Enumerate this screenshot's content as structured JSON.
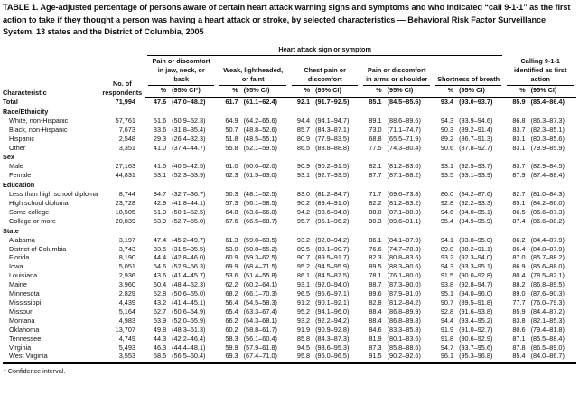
{
  "title": "TABLE 1. Age-adjusted percentage of persons aware of certain heart attack warning signs and symptoms and who indicated “call 9-1-1” as the first action to take if they thought a person was having a heart attack or stroke, by selected characteristics — Behavioral Risk Factor Surveillance System, 13 states and the District of Columbia, 2005",
  "spanner": "Heart attack sign or symptom",
  "characteristic_header": "Characteristic",
  "respondents_header": "No. of respondents",
  "groups": [
    {
      "label": "Pain or discomfort in jaw, neck, or back",
      "pct": "%",
      "ci": "(95% CI*)"
    },
    {
      "label": "Weak, lightheaded, or faint",
      "pct": "%",
      "ci": "(95% CI)"
    },
    {
      "label": "Chest pain or discomfort",
      "pct": "%",
      "ci": "(95% CI)"
    },
    {
      "label": "Pain or discomfort in arms or shoulder",
      "pct": "%",
      "ci": "(95% CI)"
    },
    {
      "label": "Shortness of breath",
      "pct": "%",
      "ci": "(95% CI)"
    },
    {
      "label": "Calling 9-1-1 identified as first action",
      "pct": "%",
      "ci": "(95% CI)"
    }
  ],
  "footnote": "* Confidence interval.",
  "rows": [
    {
      "type": "total",
      "label": "Total",
      "respondents": "71,994",
      "cells": [
        "47.6",
        "(47.0–48.2)",
        "61.7",
        "(61.1–62.4)",
        "92.1",
        "(91.7–92.5)",
        "85.1",
        "(84.5–85.6)",
        "93.4",
        "(93.0–93.7)",
        "85.9",
        "(85.4–86.4)"
      ]
    },
    {
      "type": "section",
      "label": "Race/Ethnicity"
    },
    {
      "type": "data",
      "label": "White, non-Hispanic",
      "respondents": "57,761",
      "cells": [
        "51.6",
        "(50.9–52.3)",
        "64.9",
        "(64.2–65.6)",
        "94.4",
        "(94.1–94.7)",
        "89.1",
        "(88.6–89.6)",
        "94.3",
        "(93.9–94.6)",
        "86.8",
        "(86.3–87.3)"
      ]
    },
    {
      "type": "data",
      "label": "Black, non-Hispanic",
      "respondents": "7,673",
      "cells": [
        "33.6",
        "(31.8–35.4)",
        "50.7",
        "(48.8–52.6)",
        "85.7",
        "(84.3–87.1)",
        "73.0",
        "(71.1–74.7)",
        "90.3",
        "(89.2–91.4)",
        "83.7",
        "(82.3–85.1)"
      ]
    },
    {
      "type": "data",
      "label": "Hispanic",
      "respondents": "2,548",
      "cells": [
        "29.3",
        "(26.4–32.3)",
        "51.8",
        "(48.5–55.1)",
        "80.9",
        "(77.9–83.5)",
        "68.8",
        "(65.5–71.9)",
        "89.2",
        "(86.7–91.3)",
        "83.1",
        "(80.3–85.6)"
      ]
    },
    {
      "type": "data",
      "label": "Other",
      "respondents": "3,351",
      "cells": [
        "41.0",
        "(37.4–44.7)",
        "55.8",
        "(52.1–59.5)",
        "86.5",
        "(83.8–88.8)",
        "77.5",
        "(74.3–80.4)",
        "90.6",
        "(87.8–92.7)",
        "83.1",
        "(79.9–85.9)"
      ]
    },
    {
      "type": "section",
      "label": "Sex"
    },
    {
      "type": "data",
      "label": "Male",
      "respondents": "27,163",
      "cells": [
        "41.5",
        "(40.5–42.5)",
        "61.0",
        "(60.0–62.0)",
        "90.9",
        "(90.2–91.5)",
        "82.1",
        "(81.2–83.0)",
        "93.1",
        "(92.5–93.7)",
        "83.7",
        "(82.9–84.5)"
      ]
    },
    {
      "type": "data",
      "label": "Female",
      "respondents": "44,831",
      "cells": [
        "53.1",
        "(52.3–53.9)",
        "62.3",
        "(61.5–63.0)",
        "93.1",
        "(92.7–93.5)",
        "87.7",
        "(87.1–88.2)",
        "93.5",
        "(93.1–93.9)",
        "87.9",
        "(87.4–88.4)"
      ]
    },
    {
      "type": "section",
      "label": "Education"
    },
    {
      "type": "data",
      "label": "Less than high school diploma",
      "respondents": "8,744",
      "cells": [
        "34.7",
        "(32.7–36.7)",
        "50.3",
        "(48.1–52.5)",
        "83.0",
        "(81.2–84.7)",
        "71.7",
        "(69.6–73.8)",
        "86.0",
        "(84.2–87.6)",
        "82.7",
        "(81.0–84.3)"
      ]
    },
    {
      "type": "data",
      "label": "High school diploma",
      "respondents": "23,728",
      "cells": [
        "42.9",
        "(41.8–44.1)",
        "57.3",
        "(56.1–58.5)",
        "90.2",
        "(89.4–91.0)",
        "82.2",
        "(81.2–83.2)",
        "92.8",
        "(92.2–93.3)",
        "85.1",
        "(84.2–86.0)"
      ]
    },
    {
      "type": "data",
      "label": "Some college",
      "respondents": "18,505",
      "cells": [
        "51.3",
        "(50.1–52.5)",
        "64.8",
        "(63.6–66.0)",
        "94.2",
        "(93.6–94.8)",
        "88.0",
        "(87.1–88.9)",
        "94.6",
        "(94.0–95.1)",
        "86.5",
        "(85.6–87.3)"
      ]
    },
    {
      "type": "data",
      "label": "College or more",
      "respondents": "20,839",
      "cells": [
        "53.9",
        "(52.7–55.0)",
        "67.6",
        "(66.5–68.7)",
        "95.7",
        "(95.1–96.2)",
        "90.3",
        "(89.6–91.1)",
        "95.4",
        "(94.9–95.9)",
        "87.4",
        "(86.6–88.2)"
      ]
    },
    {
      "type": "section",
      "label": "State"
    },
    {
      "type": "data",
      "label": "Alabama",
      "respondents": "3,197",
      "cells": [
        "47.4",
        "(45.2–49.7)",
        "61.3",
        "(59.0–63.5)",
        "93.2",
        "(92.0–94.2)",
        "86.1",
        "(84.1–87.9)",
        "94.1",
        "(93.0–95.0)",
        "86.2",
        "(84.4–87.9)"
      ]
    },
    {
      "type": "data",
      "label": "District of Columbia",
      "respondents": "3,743",
      "cells": [
        "33.5",
        "(31.5–35.5)",
        "53.0",
        "(50.8–55.2)",
        "89.5",
        "(88.1–90.7)",
        "76.6",
        "(74.7–78.3)",
        "89.8",
        "(88.2–91.1)",
        "86.4",
        "(84.8–87.9)"
      ]
    },
    {
      "type": "data",
      "label": "Florida",
      "respondents": "8,190",
      "cells": [
        "44.4",
        "(42.8–46.0)",
        "60.9",
        "(59.3–62.5)",
        "90.7",
        "(89.5–91.7)",
        "82.3",
        "(80.8–83.6)",
        "93.2",
        "(92.3–94.0)",
        "87.0",
        "(85.7–88.2)"
      ]
    },
    {
      "type": "data",
      "label": "Iowa",
      "respondents": "5,051",
      "cells": [
        "54.6",
        "(52.9–56.3)",
        "69.9",
        "(68.4–71.5)",
        "95.2",
        "(94.5–95.9)",
        "89.5",
        "(88.3–90.6)",
        "94.3",
        "(93.3–95.1)",
        "86.9",
        "(85.6–88.0)"
      ]
    },
    {
      "type": "data",
      "label": "Louisiana",
      "respondents": "2,936",
      "cells": [
        "43.6",
        "(41.4–45.7)",
        "53.6",
        "(51.4–55.8)",
        "86.1",
        "(84.5–87.5)",
        "78.1",
        "(76.1–80.0)",
        "91.5",
        "(90.0–92.8)",
        "80.4",
        "(78.5–82.1)"
      ]
    },
    {
      "type": "data",
      "label": "Maine",
      "respondents": "3,960",
      "cells": [
        "50.4",
        "(48.4–52.3)",
        "62.2",
        "(60.2–64.1)",
        "93.1",
        "(92.0–94.0)",
        "88.7",
        "(87.3–90.0)",
        "93.8",
        "(92.8–94.7)",
        "88.2",
        "(86.8–89.5)"
      ]
    },
    {
      "type": "data",
      "label": "Minnesota",
      "respondents": "2,829",
      "cells": [
        "52.8",
        "(50.6–55.0)",
        "68.2",
        "(66.1–70.3)",
        "96.5",
        "(95.6–97.1)",
        "89.6",
        "(87.9–91.0)",
        "95.1",
        "(94.0–96.0)",
        "89.0",
        "(87.6–90.3)"
      ]
    },
    {
      "type": "data",
      "label": "Mississippi",
      "respondents": "4,439",
      "cells": [
        "43.2",
        "(41.4–45.1)",
        "56.4",
        "(54.5–58.3)",
        "91.2",
        "(90.1–92.1)",
        "82.8",
        "(81.2–84.2)",
        "90.7",
        "(89.5–91.8)",
        "77.7",
        "(76.0–79.3)"
      ]
    },
    {
      "type": "data",
      "label": "Missouri",
      "respondents": "5,164",
      "cells": [
        "52.7",
        "(50.6–54.9)",
        "65.4",
        "(63.3–67.4)",
        "95.2",
        "(94.1–96.0)",
        "88.4",
        "(86.8–89.9)",
        "92.8",
        "(91.6–93.8)",
        "85.9",
        "(84.4–87.2)"
      ]
    },
    {
      "type": "data",
      "label": "Montana",
      "respondents": "4,983",
      "cells": [
        "53.9",
        "(52.0–55.9)",
        "66.2",
        "(64.3–68.1)",
        "93.2",
        "(92.2–94.2)",
        "88.4",
        "(86.8–89.8)",
        "94.4",
        "(93.4–95.2)",
        "83.8",
        "(82.1–85.3)"
      ]
    },
    {
      "type": "data",
      "label": "Oklahoma",
      "respondents": "13,707",
      "cells": [
        "49.8",
        "(48.3–51.3)",
        "60.2",
        "(58.8–61.7)",
        "91.9",
        "(90.9–92.8)",
        "84.6",
        "(83.3–85.8)",
        "91.9",
        "(91.0–92.7)",
        "80.6",
        "(79.4–81.8)"
      ]
    },
    {
      "type": "data",
      "label": "Tennessee",
      "respondents": "4,749",
      "cells": [
        "44.3",
        "(42.2–46.4)",
        "58.3",
        "(56.1–60.4)",
        "85.8",
        "(84.3–87.3)",
        "81.9",
        "(80.1–83.6)",
        "91.8",
        "(90.6–92.9)",
        "87.1",
        "(85.5–88.4)"
      ]
    },
    {
      "type": "data",
      "label": "Virginia",
      "respondents": "5,493",
      "cells": [
        "46.3",
        "(44.4–48.1)",
        "59.9",
        "(57.9–61.8)",
        "94.5",
        "(93.6–95.3)",
        "87.3",
        "(85.8–88.6)",
        "94.7",
        "(93.7–95.6)",
        "87.8",
        "(86.5–89.0)"
      ]
    },
    {
      "type": "data",
      "label": "West Virginia",
      "respondents": "3,553",
      "cells": [
        "58.5",
        "(56.5–60.4)",
        "69.3",
        "(67.4–71.0)",
        "95.8",
        "(95.0–96.5)",
        "91.5",
        "(90.2–92.6)",
        "96.1",
        "(95.3–96.8)",
        "85.4",
        "(84.0–86.7)"
      ]
    }
  ]
}
